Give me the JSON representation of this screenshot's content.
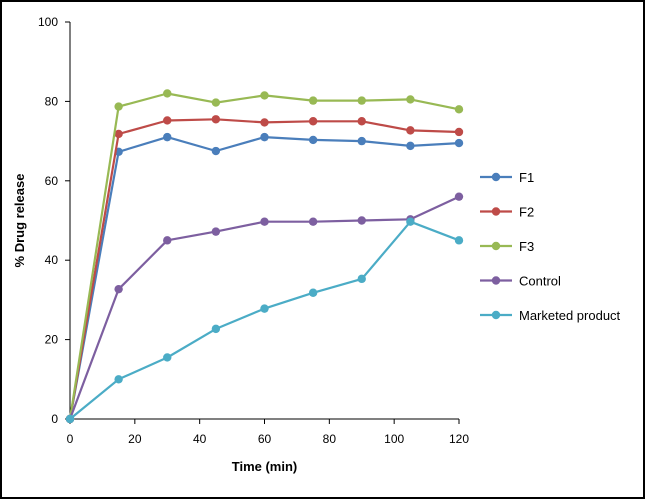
{
  "chart_data": {
    "type": "line",
    "title": "",
    "xlabel": "Time (min)",
    "ylabel": "% Drug release",
    "xlim": [
      0,
      120
    ],
    "ylim": [
      0,
      100
    ],
    "xticks": [
      0,
      20,
      40,
      60,
      80,
      100,
      120
    ],
    "yticks": [
      0,
      20,
      40,
      60,
      80,
      100
    ],
    "grid": false,
    "legend_position": "right",
    "x": [
      0,
      15,
      30,
      45,
      60,
      75,
      90,
      105,
      120
    ],
    "series": [
      {
        "name": "F1",
        "color": "#4a7ebb",
        "values": [
          0,
          67.3,
          71.0,
          67.5,
          71.0,
          70.3,
          70.0,
          68.8,
          69.5
        ]
      },
      {
        "name": "F2",
        "color": "#be4b48",
        "values": [
          0,
          71.8,
          75.2,
          75.5,
          74.7,
          75.0,
          75.0,
          72.7,
          72.3
        ]
      },
      {
        "name": "F3",
        "color": "#98b954",
        "values": [
          0,
          78.7,
          82.0,
          79.7,
          81.5,
          80.2,
          80.2,
          80.5,
          78.0
        ]
      },
      {
        "name": "Control",
        "color": "#7d5fa0",
        "values": [
          0,
          32.7,
          45.0,
          47.2,
          49.7,
          49.7,
          50.0,
          50.3,
          56.0
        ]
      },
      {
        "name": "Marketed product",
        "color": "#4bacc6",
        "values": [
          0,
          10.0,
          15.5,
          22.7,
          27.8,
          31.8,
          35.3,
          49.7,
          45.0
        ]
      }
    ]
  }
}
